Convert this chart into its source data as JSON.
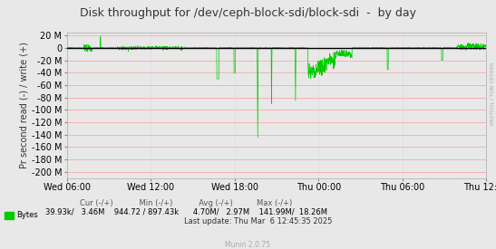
{
  "title": "Disk throughput for /dev/ceph-block-sdi/block-sdi  -  by day",
  "ylabel": "Pr second read (-) / write (+)",
  "background_color": "#e8e8e8",
  "plot_bg_color": "#e8e8e8",
  "grid_h_color": "#ff9999",
  "grid_v_color": "#cccccc",
  "line_color": "#00cc00",
  "zero_line_color": "#000000",
  "ylim": [
    -210000000,
    25000000
  ],
  "yticks": [
    -200000000,
    -180000000,
    -160000000,
    -140000000,
    -120000000,
    -100000000,
    -80000000,
    -60000000,
    -40000000,
    -20000000,
    0,
    20000000
  ],
  "ytick_labels": [
    "-200 M",
    "-180 M",
    "-160 M",
    "-140 M",
    "-120 M",
    "-100 M",
    "-80 M",
    "-60 M",
    "-40 M",
    "-20 M",
    "0",
    "20 M"
  ],
  "xtick_labels": [
    "Wed 06:00",
    "Wed 12:00",
    "Wed 18:00",
    "Thu 00:00",
    "Thu 06:00",
    "Thu 12:00"
  ],
  "legend_label": "Bytes",
  "legend_color": "#00cc00",
  "last_update": "Last update: Thu Mar  6 12:45:35 2025",
  "munin_version": "Munin 2.0.75",
  "watermark": "RRDTOOL / TOBI OETIKER",
  "title_fontsize": 9,
  "axis_label_fontsize": 7,
  "tick_fontsize": 7,
  "stats_fontsize": 6
}
